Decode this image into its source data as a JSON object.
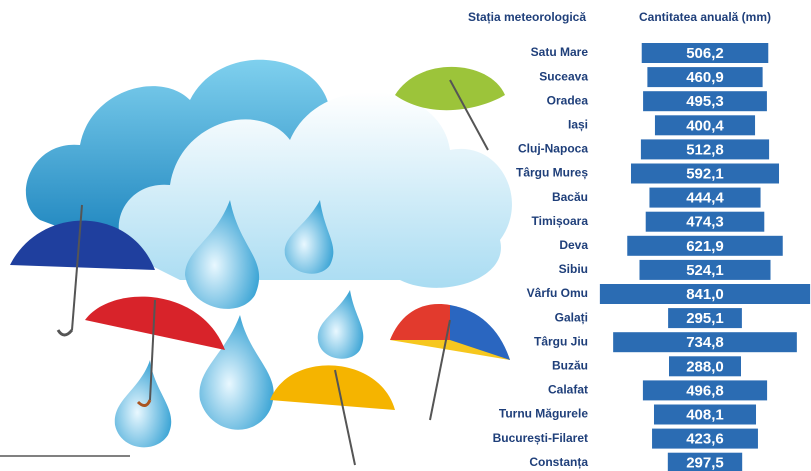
{
  "chart_data": {
    "type": "bar",
    "orientation": "horizontal-centered",
    "category_header": "Stația meteorologică",
    "value_header": "Cantitatea anuală (mm)",
    "categories": [
      "Satu Mare",
      "Suceava",
      "Oradea",
      "Iași",
      "Cluj-Napoca",
      "Târgu Mureș",
      "Bacău",
      "Timișoara",
      "Deva",
      "Sibiu",
      "Vârfu Omu",
      "Galați",
      "Târgu Jiu",
      "Buzău",
      "Calafat",
      "Turnu Măgurele",
      "București-Filaret",
      "Constanța"
    ],
    "values": [
      506.2,
      460.9,
      495.3,
      400.4,
      512.8,
      592.1,
      444.4,
      474.3,
      621.9,
      524.1,
      841.0,
      295.1,
      734.8,
      288.0,
      496.8,
      408.1,
      423.6,
      297.5
    ],
    "value_labels": [
      "506,2",
      "460,9",
      "495,3",
      "400,4",
      "512,8",
      "592,1",
      "444,4",
      "474,3",
      "621,9",
      "524,1",
      "841,0",
      "295,1",
      "734,8",
      "288,0",
      "496,8",
      "408,1",
      "423,6",
      "297,5"
    ],
    "color": "#2b6cb3"
  }
}
